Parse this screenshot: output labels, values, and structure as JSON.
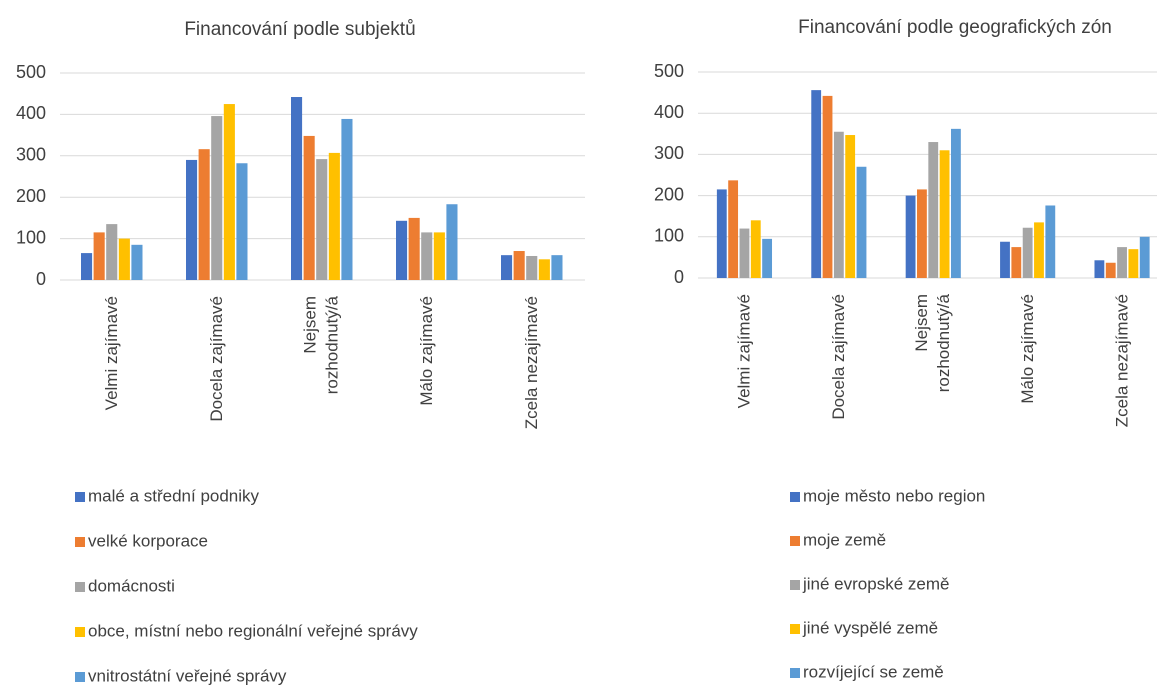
{
  "chart_data": [
    {
      "type": "bar",
      "title": "Financování podle subjektů",
      "categories": [
        "Velmi zajímavé",
        "Docela zajímavé",
        "Nejsem rozhodnutý/á",
        "Málo zajímavé",
        "Zcela nezajímavé"
      ],
      "series": [
        {
          "name": "malé a střední podniky",
          "color": "#4472c4",
          "values": [
            65,
            290,
            442,
            143,
            60
          ]
        },
        {
          "name": "velké korporace",
          "color": "#ed7d31",
          "values": [
            115,
            316,
            348,
            150,
            70
          ]
        },
        {
          "name": "domácnosti",
          "color": "#a5a5a5",
          "values": [
            135,
            396,
            292,
            115,
            58
          ]
        },
        {
          "name": "obce, místní nebo regionální veřejné správy",
          "color": "#ffc000",
          "values": [
            100,
            425,
            307,
            115,
            50
          ]
        },
        {
          "name": "vnitrostátní veřejné správy",
          "color": "#5b9bd5",
          "values": [
            85,
            282,
            389,
            183,
            60
          ]
        }
      ],
      "ylim": [
        0,
        500
      ],
      "yticks": [
        0,
        100,
        200,
        300,
        400,
        500
      ],
      "grid": true,
      "legend": "bottom"
    },
    {
      "type": "bar",
      "title": "Financování podle geografických zón",
      "categories": [
        "Velmi zajímavé",
        "Docela zajímavé",
        "Nejsem rozhodnutý/á",
        "Málo zajímavé",
        "Zcela nezajímavé"
      ],
      "series": [
        {
          "name": "moje město nebo region",
          "color": "#4472c4",
          "values": [
            215,
            456,
            200,
            88,
            43
          ]
        },
        {
          "name": "moje země",
          "color": "#ed7d31",
          "values": [
            237,
            442,
            215,
            75,
            37
          ]
        },
        {
          "name": "jiné evropské země",
          "color": "#a5a5a5",
          "values": [
            120,
            355,
            330,
            122,
            75
          ]
        },
        {
          "name": "jiné vyspělé země",
          "color": "#ffc000",
          "values": [
            140,
            347,
            310,
            135,
            70
          ]
        },
        {
          "name": "rozvíjející se země",
          "color": "#5b9bd5",
          "values": [
            95,
            270,
            362,
            176,
            100
          ]
        }
      ],
      "ylim": [
        0,
        500
      ],
      "yticks": [
        0,
        100,
        200,
        300,
        400,
        500
      ],
      "grid": true,
      "legend": "bottom"
    }
  ]
}
